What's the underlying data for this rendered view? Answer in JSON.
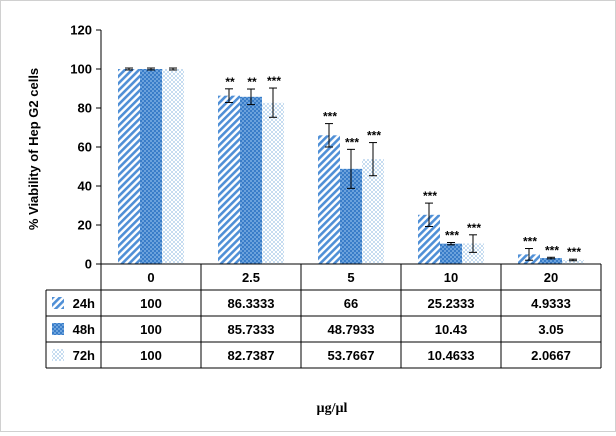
{
  "chart_data": {
    "type": "bar",
    "title": "",
    "ylabel": "% Viability of Hep G2 cells",
    "xlabel": "µg/µl",
    "ylim": [
      0,
      120
    ],
    "yticks": [
      0,
      20,
      40,
      60,
      80,
      100,
      120
    ],
    "categories": [
      "0",
      "2.5",
      "5",
      "10",
      "20"
    ],
    "series": [
      {
        "name": "24h",
        "values": [
          100,
          86.3333,
          66,
          25.2333,
          4.9333
        ],
        "labels": [
          "100",
          "86.3333",
          "66",
          "25.2333",
          "4.9333"
        ],
        "error": [
          0.5,
          3.5,
          6,
          6,
          3
        ],
        "significance": [
          "",
          "**",
          "***",
          "***",
          "***"
        ],
        "color": "#4f8fd6",
        "pattern": "diagonal-stripes"
      },
      {
        "name": "48h",
        "values": [
          100,
          85.7333,
          48.7933,
          10.43,
          3.05
        ],
        "labels": [
          "100",
          "85.7333",
          "48.7933",
          "10.43",
          "3.05"
        ],
        "error": [
          0.5,
          4,
          10,
          0.6,
          0.4
        ],
        "significance": [
          "",
          "**",
          "***",
          "***",
          "***"
        ],
        "color": "#5b9bd5",
        "pattern": "crosshatch"
      },
      {
        "name": "72h",
        "values": [
          100,
          82.7387,
          53.7667,
          10.4633,
          2.0667
        ],
        "labels": [
          "100",
          "82.7387",
          "53.7667",
          "10.4633",
          "2.0667"
        ],
        "error": [
          0.5,
          7.5,
          8.5,
          4.5,
          0.4
        ],
        "significance": [
          "",
          "***",
          "***",
          "***",
          "***"
        ],
        "color": "#9dc3e6",
        "pattern": "dots"
      }
    ],
    "data_table": true,
    "grid": false
  }
}
